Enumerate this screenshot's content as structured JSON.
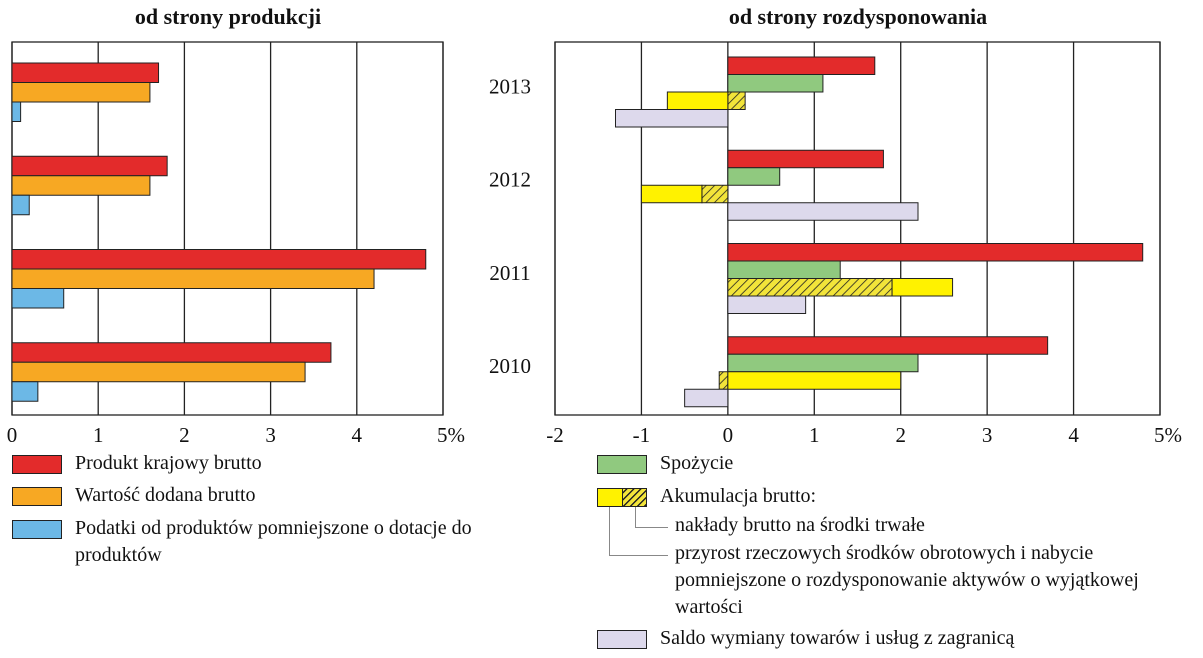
{
  "chart_data": [
    {
      "type": "hbar",
      "title": "od strony produkcji",
      "xlim": [
        0,
        5
      ],
      "xticks": [
        0,
        1,
        2,
        3,
        4,
        {
          "value": 5,
          "label": "5%"
        }
      ],
      "grid": true,
      "series": [
        {
          "name": "Produkt krajowy brutto",
          "color": "#e32b2b",
          "values": [
            1.7,
            1.8,
            4.8,
            3.7
          ]
        },
        {
          "name": "Wartość dodana brutto",
          "color": "#f7a823",
          "values": [
            1.6,
            1.6,
            4.2,
            3.4
          ]
        },
        {
          "name": "Podatki od produktów pomniejszone o dotacje do produktów",
          "color": "#6cb8e6",
          "values": [
            0.1,
            0.2,
            0.6,
            0.3
          ]
        }
      ]
    },
    {
      "type": "hbar",
      "title": "od strony rozdysponowania",
      "categories": [
        "2013",
        "2012",
        "2011",
        "2010"
      ],
      "xlim": [
        -2,
        5
      ],
      "xticks": [
        -2,
        -1,
        0,
        1,
        2,
        3,
        4,
        {
          "value": 5,
          "label": "5%"
        }
      ],
      "grid": true,
      "series": [
        {
          "color": "#e32b2b",
          "values": [
            1.7,
            1.8,
            4.8,
            3.7
          ]
        },
        {
          "name": "Spożycie",
          "color": "#90c97f",
          "values": [
            1.1,
            0.6,
            1.3,
            2.2
          ]
        },
        {
          "label": "Akumulacja brutto:",
          "segments": [
            {
              "name": "nakłady brutto na środki trwałe",
              "color": "#f2e43a",
              "pattern": "hatch",
              "values": [
                0.2,
                -0.3,
                1.9,
                -0.1
              ]
            },
            {
              "name": "przyrost rzeczowych środków obrotowych i nabycie pomniejszone o rozdysponowanie aktywów o wyjątkowej wartości",
              "color": "#fff200",
              "values": [
                -0.7,
                -0.7,
                0.7,
                2.0
              ]
            }
          ]
        },
        {
          "name": "Saldo wymiany towarów i usług z zagranicą",
          "color": "#ddd9ec",
          "values": [
            -1.3,
            2.2,
            0.9,
            -0.5
          ]
        }
      ]
    }
  ]
}
